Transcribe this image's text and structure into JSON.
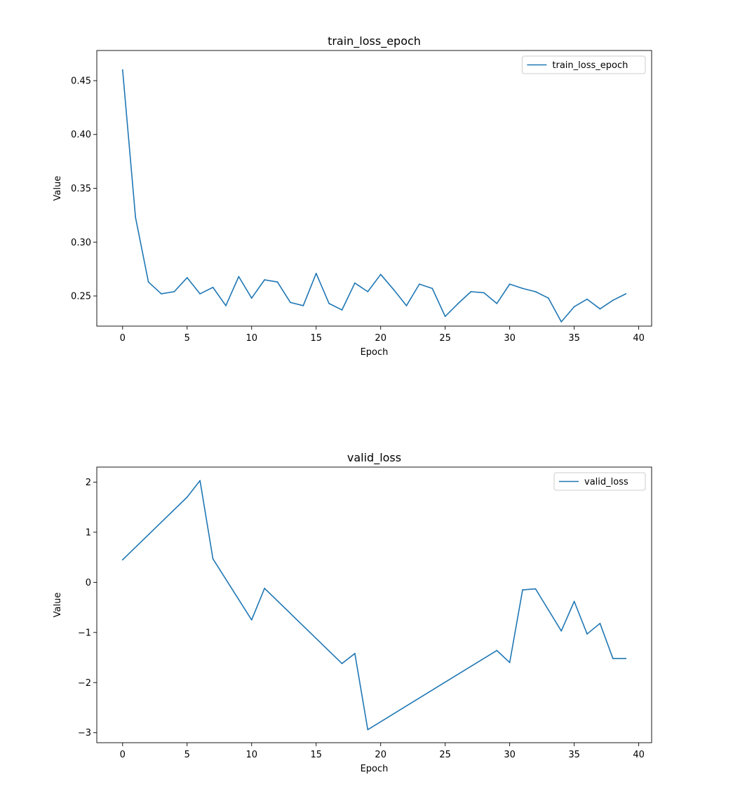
{
  "chart_data": [
    {
      "type": "line",
      "title": "train_loss_epoch",
      "xlabel": "Epoch",
      "ylabel": "Value",
      "xlim": [
        -2,
        41
      ],
      "ylim": [
        0.222,
        0.478
      ],
      "xticks": [
        0,
        5,
        10,
        15,
        20,
        25,
        30,
        35,
        40
      ],
      "yticks": [
        0.25,
        0.3,
        0.35,
        0.4,
        0.45
      ],
      "xtick_labels": [
        "0",
        "5",
        "10",
        "15",
        "20",
        "25",
        "30",
        "35",
        "40"
      ],
      "ytick_labels": [
        "0.25",
        "0.30",
        "0.35",
        "0.40",
        "0.45"
      ],
      "legend_position": "top-right",
      "grid": false,
      "series": [
        {
          "name": "train_loss_epoch",
          "color": "#1f77b4",
          "x": [
            0,
            1,
            2,
            3,
            4,
            5,
            6,
            7,
            8,
            9,
            10,
            11,
            12,
            13,
            14,
            15,
            16,
            17,
            18,
            19,
            20,
            21,
            22,
            23,
            24,
            25,
            26,
            27,
            28,
            29,
            30,
            31,
            32,
            33,
            34,
            35,
            36,
            37,
            38,
            39
          ],
          "values": [
            0.46,
            0.323,
            0.263,
            0.252,
            0.254,
            0.267,
            0.252,
            0.258,
            0.241,
            0.268,
            0.248,
            0.265,
            0.263,
            0.244,
            0.241,
            0.271,
            0.243,
            0.237,
            0.262,
            0.254,
            0.27,
            0.256,
            0.241,
            0.261,
            0.257,
            0.231,
            0.243,
            0.254,
            0.253,
            0.243,
            0.261,
            0.257,
            0.254,
            0.248,
            0.226,
            0.24,
            0.247,
            0.238,
            0.246,
            0.252
          ]
        }
      ]
    },
    {
      "type": "line",
      "title": "valid_loss",
      "xlabel": "Epoch",
      "ylabel": "Value",
      "xlim": [
        -2,
        41
      ],
      "ylim": [
        -3.2,
        2.3
      ],
      "xticks": [
        0,
        5,
        10,
        15,
        20,
        25,
        30,
        35,
        40
      ],
      "yticks": [
        -3,
        -2,
        -1,
        0,
        1,
        2
      ],
      "xtick_labels": [
        "0",
        "5",
        "10",
        "15",
        "20",
        "25",
        "30",
        "35",
        "40"
      ],
      "ytick_labels": [
        "−3",
        "−2",
        "−1",
        "0",
        "1",
        "2"
      ],
      "legend_position": "top-right",
      "grid": false,
      "series": [
        {
          "name": "valid_loss",
          "color": "#1f77b4",
          "x": [
            0,
            5,
            6,
            7,
            10,
            11,
            17,
            18,
            19,
            29,
            30,
            31,
            32,
            34,
            35,
            36,
            37,
            38,
            39
          ],
          "values": [
            0.45,
            1.7,
            2.03,
            0.47,
            -0.75,
            -0.12,
            -1.62,
            -1.42,
            -2.94,
            -1.36,
            -1.6,
            -0.15,
            -0.13,
            -0.97,
            -0.38,
            -1.03,
            -0.82,
            -1.52,
            -1.52
          ]
        }
      ]
    }
  ]
}
